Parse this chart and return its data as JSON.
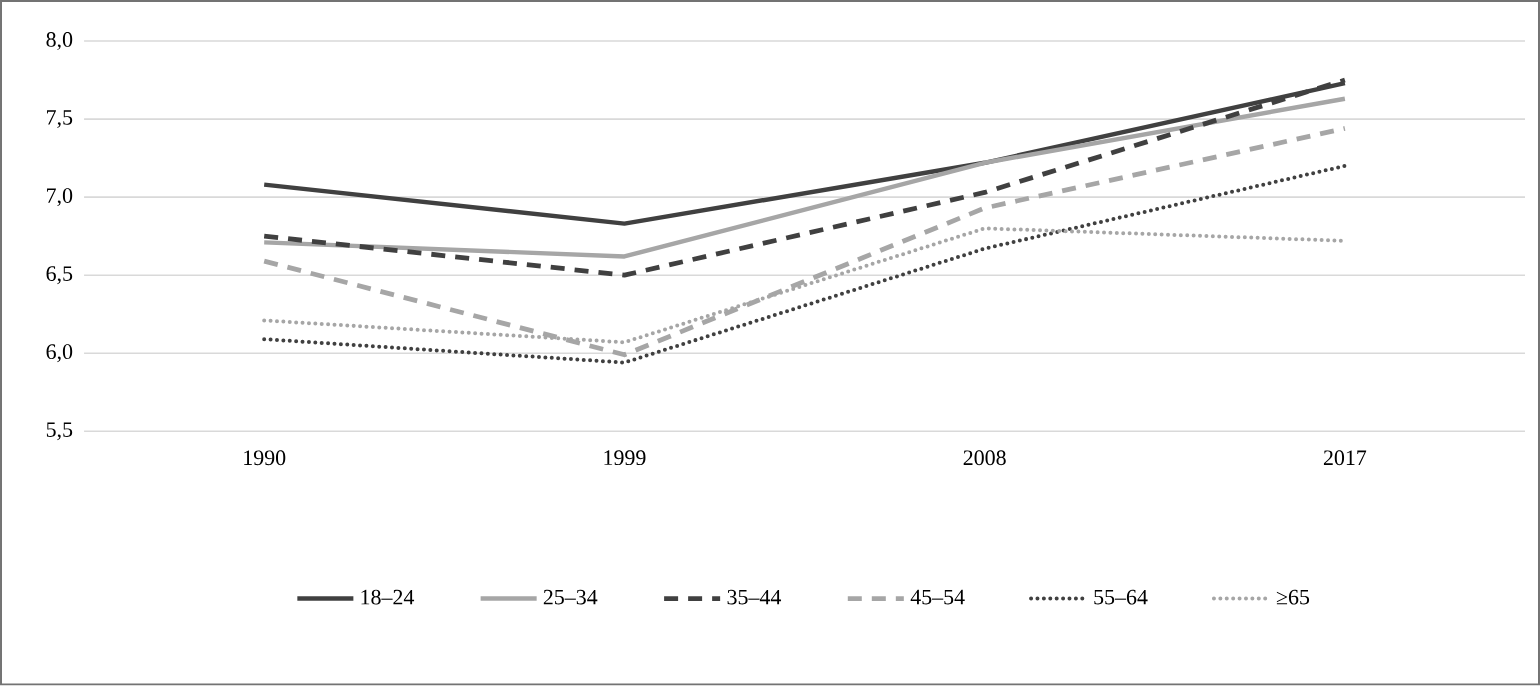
{
  "chart_data": {
    "type": "line",
    "categories": [
      "1990",
      "1999",
      "2008",
      "2017"
    ],
    "series": [
      {
        "name": "18–24",
        "color": "#404040",
        "line_style": "solid",
        "values": [
          7.08,
          6.83,
          7.22,
          7.73
        ]
      },
      {
        "name": "25–34",
        "color": "#a6a6a6",
        "line_style": "solid",
        "values": [
          6.71,
          6.62,
          7.22,
          7.63
        ]
      },
      {
        "name": "35–44",
        "color": "#404040",
        "line_style": "dashed",
        "values": [
          6.75,
          6.5,
          7.03,
          7.75
        ]
      },
      {
        "name": "45–54",
        "color": "#a6a6a6",
        "line_style": "dashed",
        "values": [
          6.59,
          5.99,
          6.93,
          7.44
        ]
      },
      {
        "name": "55–64",
        "color": "#404040",
        "line_style": "dotted",
        "values": [
          6.09,
          5.94,
          6.67,
          7.2
        ]
      },
      {
        "name": "≥65",
        "color": "#a6a6a6",
        "line_style": "dotted",
        "values": [
          6.21,
          6.07,
          6.8,
          6.72
        ]
      }
    ],
    "ylim": [
      5.5,
      8.0
    ],
    "yticks": [
      {
        "value": 5.5,
        "label": "5,5"
      },
      {
        "value": 6.0,
        "label": "6,0"
      },
      {
        "value": 6.5,
        "label": "6,5"
      },
      {
        "value": 7.0,
        "label": "7,0"
      },
      {
        "value": 7.5,
        "label": "7,5"
      },
      {
        "value": 8.0,
        "label": "8,0"
      }
    ],
    "grid": "y",
    "legend": "bottom"
  }
}
